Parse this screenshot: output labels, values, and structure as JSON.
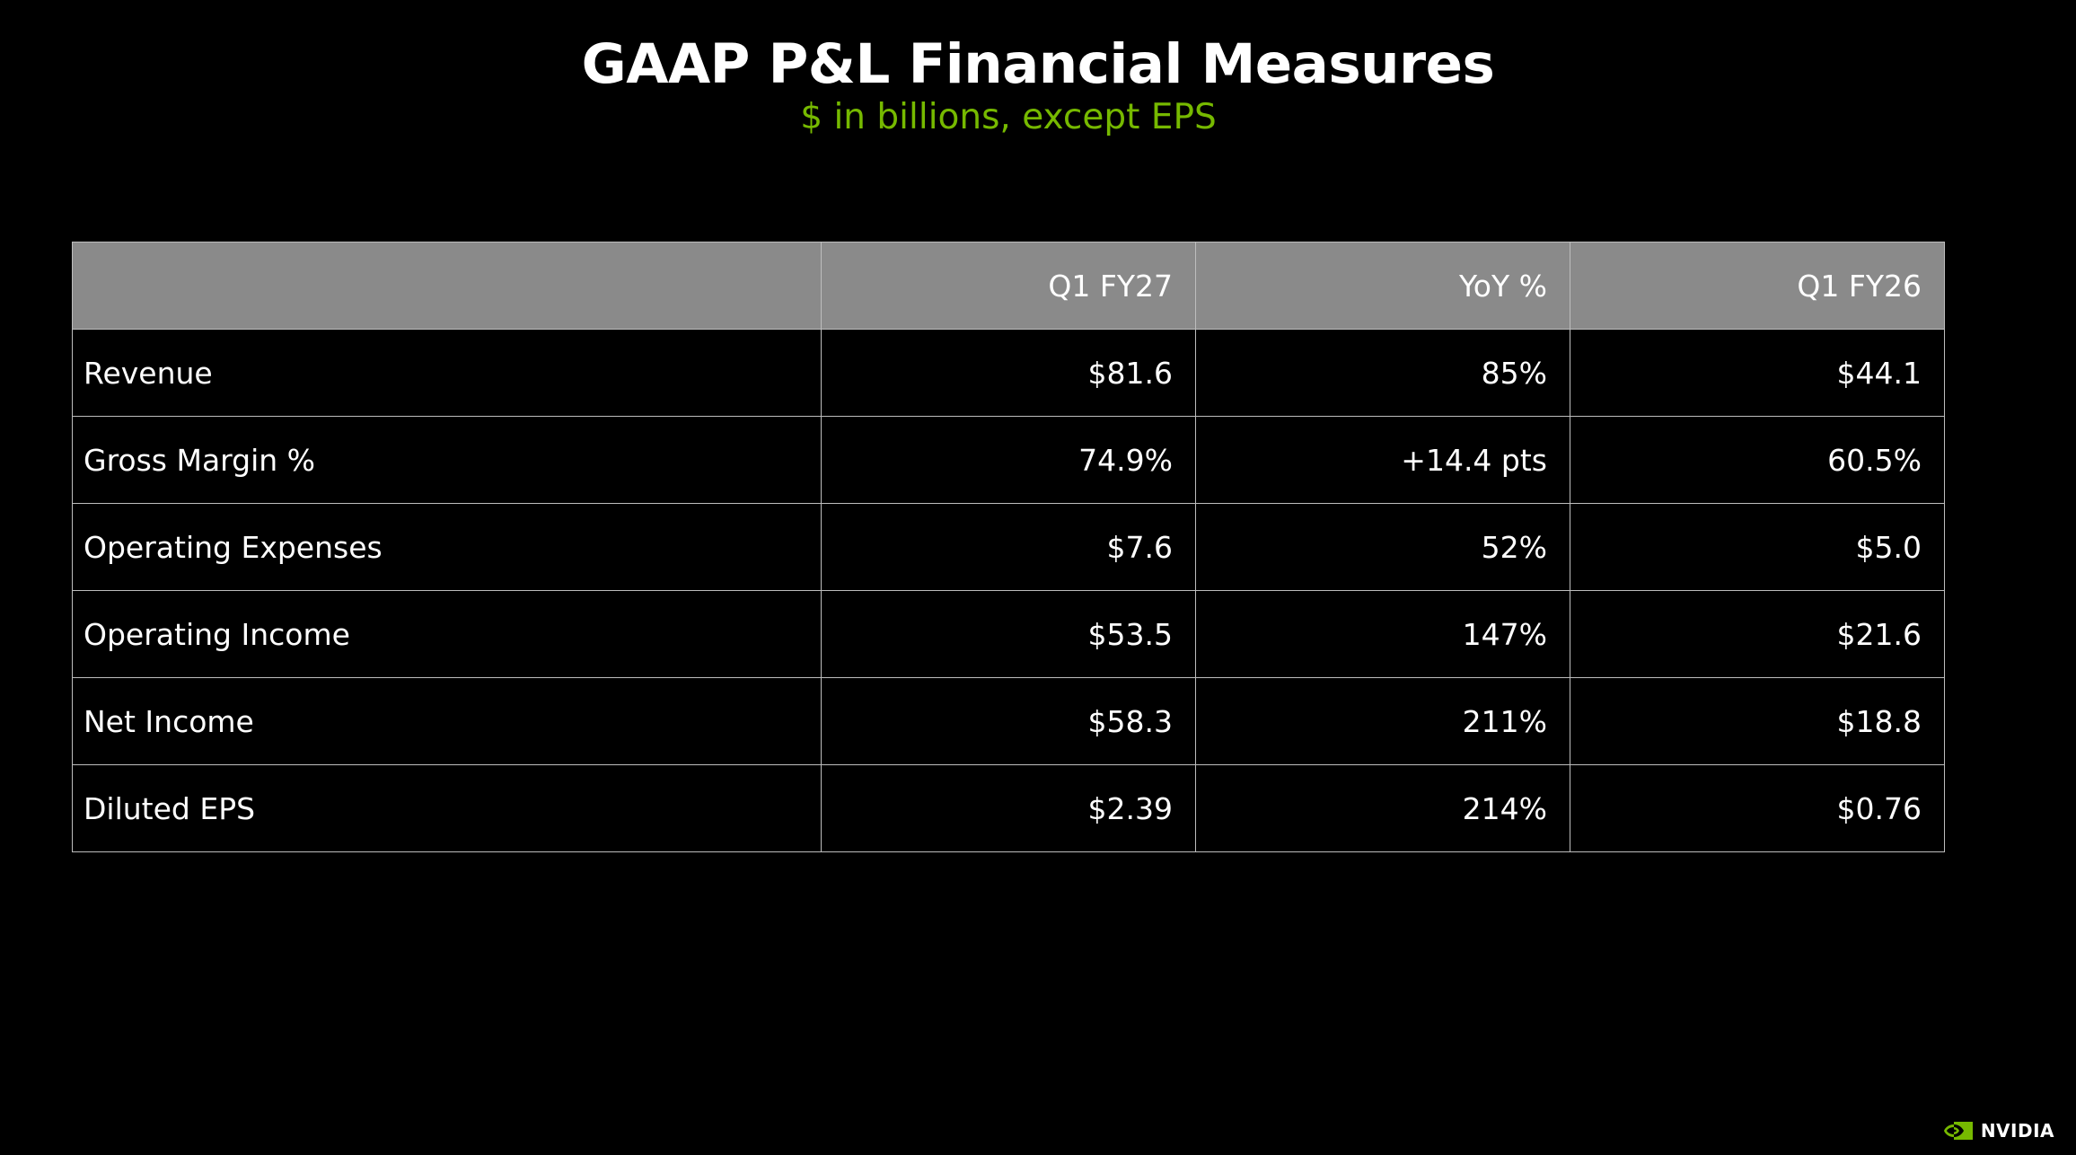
{
  "header": {
    "title": "GAAP P&L Financial Measures",
    "subtitle": "$ in billions, except EPS"
  },
  "table": {
    "columns": [
      "",
      "Q1 FY27",
      "YoY %",
      "Q1 FY26"
    ],
    "rows": [
      {
        "label": "Revenue",
        "q1fy27": "$81.6",
        "yoy": "85%",
        "q1fy26": "$44.1"
      },
      {
        "label": "Gross Margin %",
        "q1fy27": "74.9%",
        "yoy": "+14.4 pts",
        "q1fy26": "60.5%"
      },
      {
        "label": "Operating Expenses",
        "q1fy27": "$7.6",
        "yoy": "52%",
        "q1fy26": "$5.0"
      },
      {
        "label": "Operating Income",
        "q1fy27": "$53.5",
        "yoy": "147%",
        "q1fy26": "$21.6"
      },
      {
        "label": "Net Income",
        "q1fy27": "$58.3",
        "yoy": "211%",
        "q1fy26": "$18.8"
      },
      {
        "label": "Diluted EPS",
        "q1fy27": "$2.39",
        "yoy": "214%",
        "q1fy26": "$0.76"
      }
    ]
  },
  "footer": {
    "logo_text": "NVIDIA",
    "logo_icon": "nvidia-eye-icon"
  },
  "colors": {
    "background": "#000000",
    "accent": "#76b900",
    "header_fill": "#8a8a8a"
  }
}
